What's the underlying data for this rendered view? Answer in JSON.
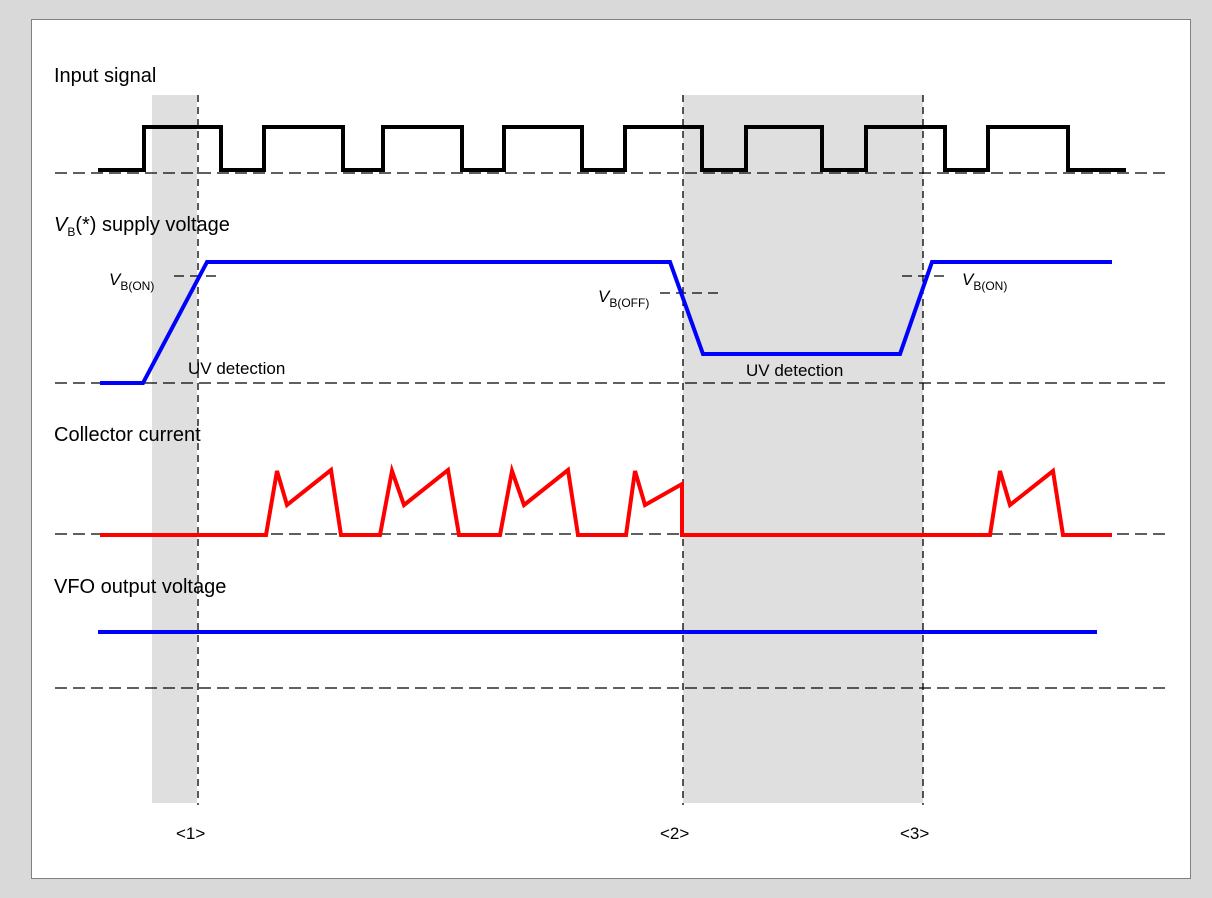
{
  "colors": {
    "background": "#d9d9d9",
    "panel": "#ffffff",
    "input_signal": "#000000",
    "supply_voltage": "#0000ff",
    "collector_current": "#ff0000",
    "vfo_output": "#0000ff",
    "shade": "#d4d4d4"
  },
  "labels": {
    "input_signal": "Input signal",
    "vb_symbol": "V",
    "vb_sub": "B",
    "vb_rest": "(*) supply voltage",
    "collector_current": "Collector current",
    "vfo_output": "VFO output voltage",
    "uv_detection_1": "UV detection",
    "uv_detection_2": "UV detection",
    "vb_on_1_sym": "V",
    "vb_on_1_sub": "B(ON)",
    "vb_off_sym": "V",
    "vb_off_sub": "B(OFF)",
    "vb_on_2_sym": "V",
    "vb_on_2_sub": "B(ON)",
    "marker_1": "<1>",
    "marker_2": "<2>",
    "marker_3": "<3>"
  }
}
